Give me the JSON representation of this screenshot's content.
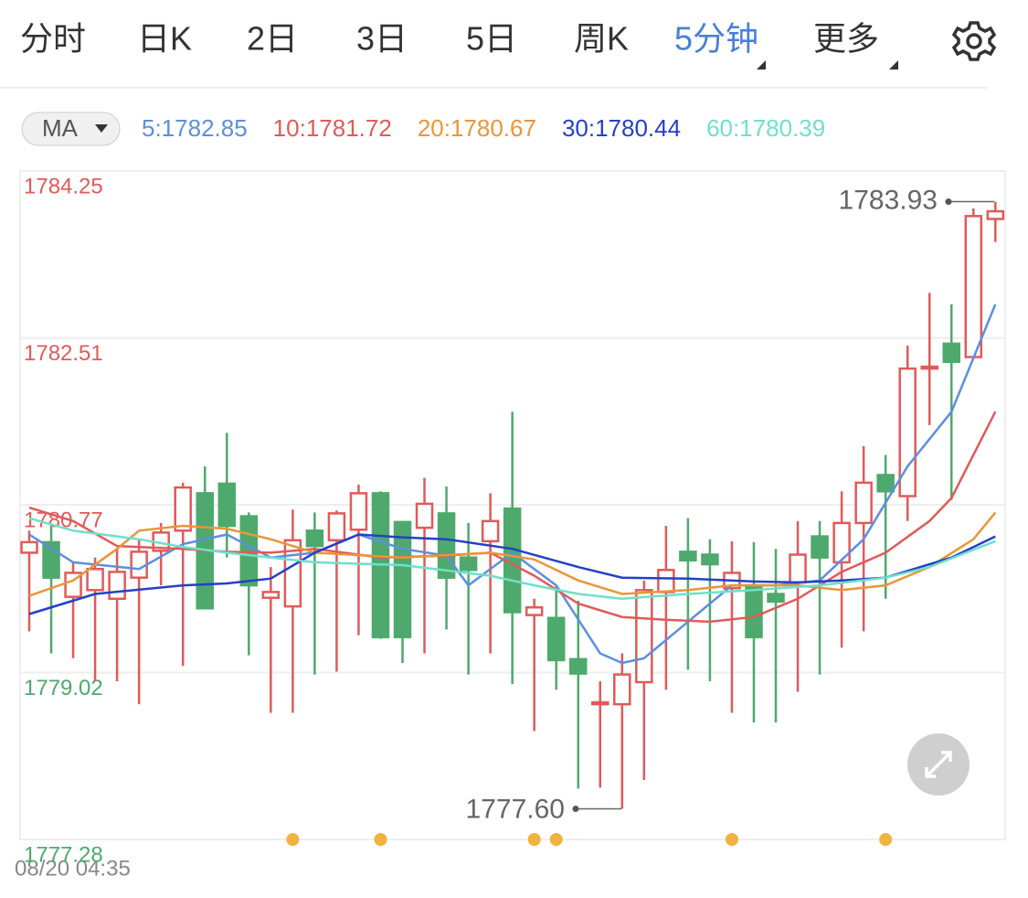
{
  "tabs": [
    "分时",
    "日K",
    "2日",
    "3日",
    "5日",
    "周K",
    "5分钟",
    "更多"
  ],
  "active_tab": 6,
  "indicator": "MA",
  "chart_data": {
    "type": "candlestick",
    "ylim": [
      1777.28,
      1784.25
    ],
    "yticks": [
      1784.25,
      1782.51,
      1780.77,
      1779.02,
      1777.28
    ],
    "grid": true,
    "up_color": "#e05a5a",
    "down_color": "#4ea96c",
    "open": [
      1780.27,
      1780.38,
      1779.81,
      1779.88,
      1779.79,
      1780.01,
      1780.29,
      1780.5,
      1780.89,
      1780.99,
      1780.65,
      1779.8,
      1779.71,
      1780.5,
      1780.4,
      1780.51,
      1780.89,
      1780.59,
      1780.53,
      1780.68,
      1780.22,
      1780.39,
      1780.73,
      1779.62,
      1779.59,
      1779.16,
      1778.69,
      1778.69,
      1778.92,
      1779.86,
      1780.28,
      1780.25,
      1779.9,
      1779.93,
      1779.84,
      1779.96,
      1780.44,
      1780.17,
      1780.58,
      1781.08,
      1780.86,
      1782.19,
      1782.45,
      1782.31,
      1783.75
    ],
    "close": [
      1780.38,
      1780.01,
      1780.06,
      1780.1,
      1780.07,
      1780.28,
      1780.48,
      1780.95,
      1779.69,
      1780.55,
      1779.93,
      1779.86,
      1780.4,
      1780.34,
      1780.68,
      1780.89,
      1779.39,
      1779.39,
      1780.78,
      1780.01,
      1780.09,
      1780.6,
      1779.65,
      1779.7,
      1779.15,
      1779.01,
      1778.71,
      1779.0,
      1779.88,
      1780.09,
      1780.19,
      1780.15,
      1780.06,
      1779.39,
      1779.76,
      1780.25,
      1780.22,
      1780.58,
      1781.0,
      1780.91,
      1782.19,
      1782.21,
      1782.26,
      1783.78,
      1783.83
    ],
    "high": [
      1780.5,
      1780.55,
      1780.17,
      1780.22,
      1780.31,
      1780.41,
      1780.58,
      1781.0,
      1781.17,
      1781.52,
      1780.69,
      1780.12,
      1780.72,
      1780.69,
      1780.71,
      1780.98,
      1780.91,
      1780.59,
      1781.05,
      1780.96,
      1780.58,
      1780.89,
      1781.74,
      1779.79,
      1779.93,
      1779.77,
      1778.93,
      1779.22,
      1779.98,
      1780.55,
      1780.63,
      1780.41,
      1780.39,
      1780.38,
      1780.31,
      1780.6,
      1780.6,
      1780.91,
      1781.38,
      1781.29,
      1782.43,
      1782.98,
      1782.86,
      1783.86,
      1783.93
    ],
    "low": [
      1779.45,
      1779.22,
      1779.17,
      1778.93,
      1778.93,
      1778.69,
      1779.93,
      1779.09,
      1779.69,
      1780.22,
      1779.2,
      1778.6,
      1778.6,
      1779.0,
      1779.03,
      1779.41,
      1779.37,
      1779.12,
      1779.22,
      1779.47,
      1779.0,
      1779.22,
      1778.9,
      1778.41,
      1778.84,
      1777.81,
      1777.82,
      1777.6,
      1777.9,
      1778.84,
      1779.05,
      1778.93,
      1778.6,
      1778.5,
      1778.5,
      1778.82,
      1779.0,
      1779.28,
      1779.45,
      1779.79,
      1780.6,
      1781.6,
      1780.82,
      1782.31,
      1783.51
    ],
    "series": [
      {
        "name": "5:1782.85",
        "color": "#5b8fe0",
        "x": [
          0,
          2,
          5,
          7,
          9,
          11,
          13,
          15,
          17,
          19,
          20,
          22,
          24,
          26,
          27,
          28,
          30,
          32,
          34,
          36,
          38,
          40,
          42,
          44
        ],
        "values": [
          1780.46,
          1780.17,
          1780.1,
          1780.36,
          1780.46,
          1780.22,
          1780.27,
          1780.46,
          1780.31,
          1780.24,
          1779.93,
          1780.27,
          1779.93,
          1779.22,
          1779.12,
          1779.17,
          1779.55,
          1779.93,
          1779.93,
          1779.98,
          1780.41,
          1781.17,
          1781.74,
          1782.86
        ]
      },
      {
        "name": "10:1781.72",
        "color": "#e05a5a",
        "x": [
          0,
          2,
          4,
          7,
          9,
          11,
          13,
          16,
          19,
          21,
          23,
          25,
          27,
          29,
          31,
          33,
          35,
          37,
          39,
          41,
          42,
          44
        ],
        "values": [
          1780.74,
          1780.6,
          1780.34,
          1780.31,
          1780.28,
          1780.27,
          1780.31,
          1780.22,
          1780.24,
          1780.27,
          1780.03,
          1779.74,
          1779.6,
          1779.57,
          1779.55,
          1779.6,
          1779.79,
          1780.07,
          1780.27,
          1780.6,
          1780.84,
          1781.74
        ]
      },
      {
        "name": "20:1780.67",
        "color": "#e8963a",
        "x": [
          0,
          2,
          4,
          5,
          7,
          9,
          11,
          13,
          17,
          21,
          23,
          25,
          27,
          30,
          32,
          35,
          37,
          39,
          41,
          43,
          44
        ],
        "values": [
          1779.82,
          1779.98,
          1780.31,
          1780.5,
          1780.55,
          1780.52,
          1780.41,
          1780.27,
          1780.22,
          1780.27,
          1780.2,
          1779.98,
          1779.84,
          1779.88,
          1779.93,
          1779.93,
          1779.88,
          1779.93,
          1780.12,
          1780.41,
          1780.69
        ]
      },
      {
        "name": "30:1780.44",
        "color": "#2440c8",
        "x": [
          0,
          3,
          7,
          9,
          11,
          13,
          15,
          17,
          19,
          22,
          25,
          27,
          30,
          33,
          35,
          37,
          39,
          42,
          44
        ],
        "values": [
          1779.63,
          1779.84,
          1779.93,
          1779.95,
          1780.0,
          1780.27,
          1780.46,
          1780.43,
          1780.41,
          1780.31,
          1780.12,
          1780.01,
          1780.0,
          1779.97,
          1779.96,
          1779.98,
          1780.01,
          1780.22,
          1780.44
        ]
      },
      {
        "name": "60:1780.39",
        "color": "#6fe0c8",
        "x": [
          0,
          2,
          5,
          7,
          9,
          11,
          13,
          17,
          21,
          23,
          25,
          27,
          30,
          33,
          36,
          39,
          41,
          44
        ],
        "values": [
          1780.63,
          1780.5,
          1780.41,
          1780.33,
          1780.27,
          1780.22,
          1780.17,
          1780.14,
          1780.03,
          1779.93,
          1779.84,
          1779.79,
          1779.84,
          1779.88,
          1779.93,
          1780.01,
          1780.12,
          1780.39
        ]
      }
    ],
    "max_label": {
      "value": 1783.93,
      "label": "1783.93"
    },
    "min_label": {
      "value": 1777.6,
      "label": "1777.60"
    },
    "events": [
      12,
      16,
      23,
      24,
      32,
      39
    ],
    "event_color": "#f2b23f"
  },
  "timestamp": "08/20 04:35"
}
